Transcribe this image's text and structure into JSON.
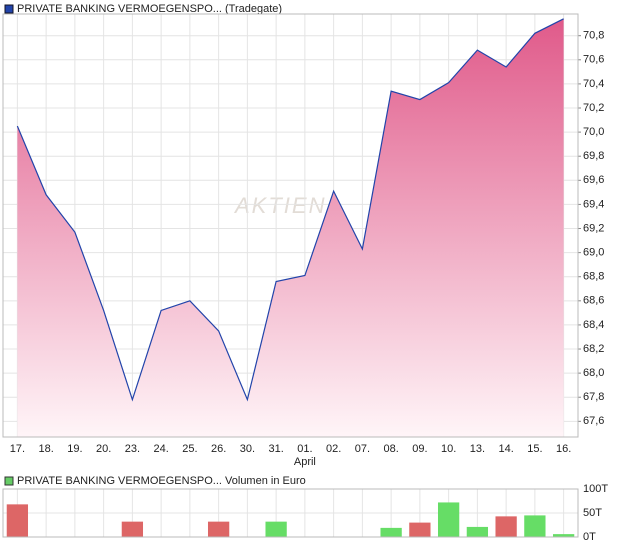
{
  "chart_data": [
    {
      "type": "area",
      "legend": "PRIVATE BANKING VERMOEGENSPO... (Tradegate)",
      "watermark": "AKTIEN",
      "categories": [
        "17.",
        "18.",
        "19.",
        "20.",
        "23.",
        "24.",
        "25.",
        "26.",
        "30.",
        "31.",
        "01.",
        "02.",
        "07.",
        "08.",
        "09.",
        "10.",
        "13.",
        "14.",
        "15.",
        "16."
      ],
      "month_labels": [
        null,
        null,
        null,
        null,
        null,
        null,
        null,
        null,
        null,
        null,
        "April",
        null,
        null,
        null,
        null,
        null,
        null,
        null,
        null,
        null
      ],
      "series": [
        {
          "name": "PRIVATE BANKING VERMOEGENSPO... (Tradegate)",
          "color": "#2244aa",
          "fill_color": "#e05a8a",
          "values": [
            70.05,
            69.48,
            69.17,
            68.52,
            67.78,
            68.52,
            68.6,
            68.35,
            67.78,
            68.76,
            68.81,
            69.51,
            69.03,
            70.34,
            70.27,
            70.41,
            70.68,
            70.54,
            70.82,
            70.94
          ]
        }
      ],
      "ylim": [
        67.47,
        70.98
      ],
      "yticks": [
        {
          "value": 67.6,
          "label": "67,6"
        },
        {
          "value": 67.8,
          "label": "67,8"
        },
        {
          "value": 68.0,
          "label": "68,0"
        },
        {
          "value": 68.2,
          "label": "68,2"
        },
        {
          "value": 68.4,
          "label": "68,4"
        },
        {
          "value": 68.6,
          "label": "68,6"
        },
        {
          "value": 68.8,
          "label": "68,8"
        },
        {
          "value": 69.0,
          "label": "69,0"
        },
        {
          "value": 69.2,
          "label": "69,2"
        },
        {
          "value": 69.4,
          "label": "69,4"
        },
        {
          "value": 69.6,
          "label": "69,6"
        },
        {
          "value": 69.8,
          "label": "69,8"
        },
        {
          "value": 70.0,
          "label": "70,0"
        },
        {
          "value": 70.2,
          "label": "70,2"
        },
        {
          "value": 70.4,
          "label": "70,4"
        },
        {
          "value": 70.6,
          "label": "70,6"
        },
        {
          "value": 70.8,
          "label": "70,8"
        }
      ],
      "grid": true
    },
    {
      "type": "bar",
      "legend": "PRIVATE BANKING VERMOEGENSPO... Volumen in Euro",
      "legend_color": "#66cc66",
      "values": [
        68,
        null,
        null,
        null,
        32,
        null,
        null,
        32,
        null,
        32,
        null,
        null,
        null,
        19,
        30,
        72,
        21,
        43,
        45,
        6
      ],
      "colors": [
        "#dd6666",
        null,
        null,
        null,
        "#dd6666",
        null,
        null,
        "#dd6666",
        null,
        "#66dd66",
        null,
        null,
        null,
        "#66dd66",
        "#dd6666",
        "#66dd66",
        "#66dd66",
        "#dd6666",
        "#66dd66",
        "#66dd66"
      ],
      "ylim": [
        0,
        100
      ],
      "yticks": [
        {
          "value": 0,
          "label": "0T"
        },
        {
          "value": 50,
          "label": "50T"
        },
        {
          "value": 100,
          "label": "100T"
        }
      ],
      "grid": true
    }
  ]
}
